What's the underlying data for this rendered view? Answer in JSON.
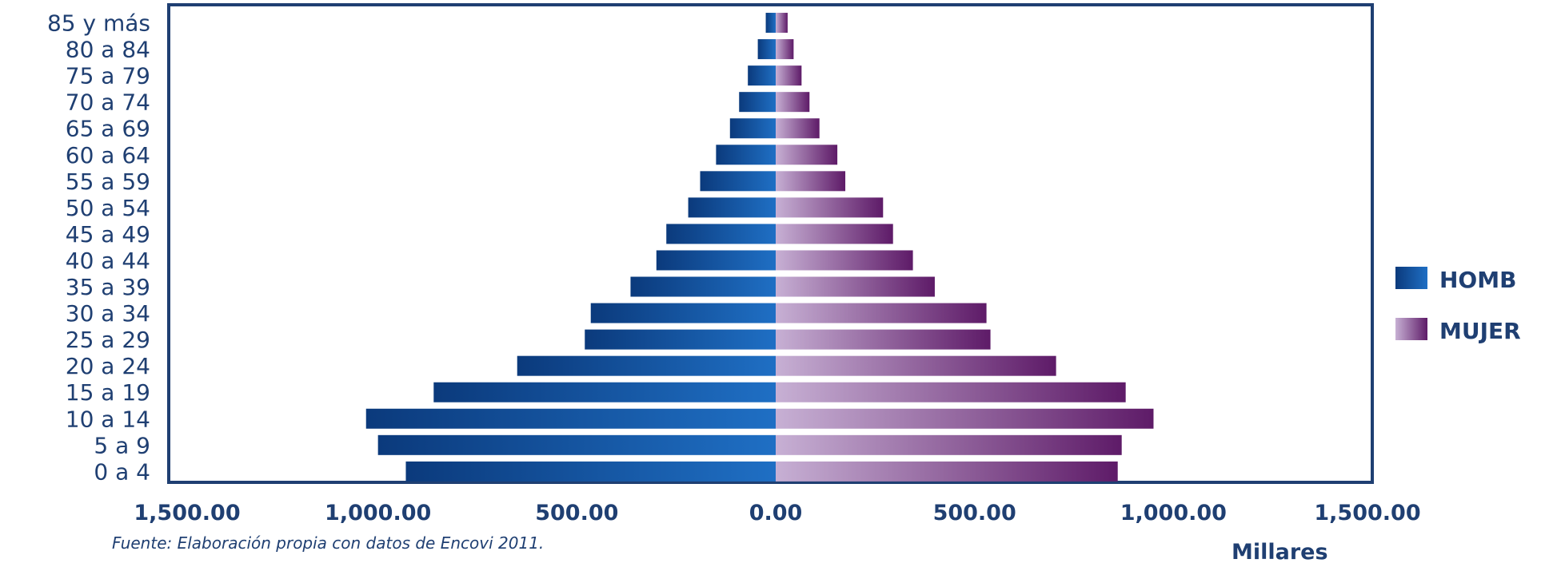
{
  "chart_data": {
    "type": "bar",
    "orientation": "horizontal-population-pyramid",
    "categories": [
      "0 a 4",
      "5 a 9",
      "10 a 14",
      "15 a 19",
      "20 a 24",
      "25 a 29",
      "30 a 34",
      "35 a 39",
      "40 a 44",
      "45 a 49",
      "50 a 54",
      "55 a 59",
      "60 a 64",
      "65 a 69",
      "70 a 74",
      "75 a 79",
      "80 a 84",
      "85 y más"
    ],
    "series": [
      {
        "name": "HOMB",
        "side": "left",
        "color_start": "#0b3a7c",
        "color_end": "#1f6fc4",
        "values": [
          930,
          1000,
          1030,
          860,
          650,
          480,
          465,
          365,
          300,
          275,
          220,
          190,
          150,
          115,
          92,
          70,
          45,
          25
        ]
      },
      {
        "name": "MUJER",
        "side": "right",
        "color_start": "#c7b0d4",
        "color_end": "#5e1b68",
        "values": [
          860,
          870,
          950,
          880,
          705,
          540,
          530,
          400,
          345,
          295,
          270,
          175,
          155,
          110,
          85,
          65,
          45,
          30
        ]
      }
    ],
    "x_ticks": [
      "1,500.00",
      "1,000.00",
      "500.00",
      "0.00",
      "500.00",
      "1,000.00",
      "1,500.00"
    ],
    "xlim": [
      -1500,
      1500
    ],
    "axis_unit": "Millares",
    "source": "Fuente: Elaboración propia con datos de Encovi 2011.",
    "legend_position": "right",
    "frame_color": "#1f3f72"
  }
}
